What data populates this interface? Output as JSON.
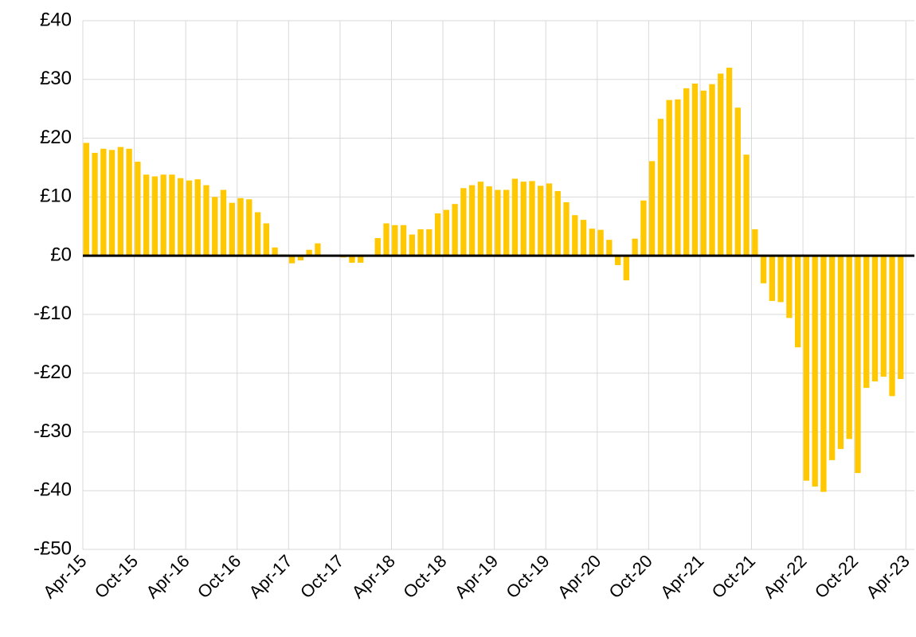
{
  "chart_data": {
    "type": "bar",
    "categories": [
      "Apr-15",
      null,
      null,
      null,
      null,
      null,
      "Oct-15",
      null,
      null,
      null,
      null,
      null,
      "Apr-16",
      null,
      null,
      null,
      null,
      null,
      "Oct-16",
      null,
      null,
      null,
      null,
      null,
      "Apr-17",
      null,
      null,
      null,
      null,
      null,
      "Oct-17",
      null,
      null,
      null,
      null,
      null,
      "Apr-18",
      null,
      null,
      null,
      null,
      null,
      "Oct-18",
      null,
      null,
      null,
      null,
      null,
      "Apr-19",
      null,
      null,
      null,
      null,
      null,
      "Oct-19",
      null,
      null,
      null,
      null,
      null,
      "Apr-20",
      null,
      null,
      null,
      null,
      null,
      "Oct-20",
      null,
      null,
      null,
      null,
      null,
      "Apr-21",
      null,
      null,
      null,
      null,
      null,
      "Oct-21",
      null,
      null,
      null,
      null,
      null,
      "Apr-22",
      null,
      null,
      null,
      null,
      null,
      "Oct-22",
      null,
      null,
      null,
      null,
      null,
      "Apr-23"
    ],
    "values": [
      19.2,
      17.5,
      18.2,
      18.0,
      18.5,
      18.2,
      16.0,
      13.8,
      13.5,
      13.8,
      13.8,
      13.2,
      12.8,
      13.0,
      12.0,
      10.0,
      11.2,
      9.0,
      9.8,
      9.6,
      7.4,
      5.5,
      1.4,
      0.2,
      -1.3,
      -0.8,
      1.0,
      2.1,
      0.1,
      0.1,
      -0.3,
      -1.2,
      -1.2,
      0.1,
      3.0,
      5.5,
      5.2,
      5.2,
      3.6,
      4.5,
      4.5,
      7.2,
      7.8,
      8.8,
      11.5,
      12.0,
      12.6,
      11.8,
      11.2,
      11.2,
      13.1,
      12.6,
      12.7,
      11.9,
      12.3,
      11.0,
      9.1,
      6.9,
      6.1,
      4.6,
      4.4,
      2.7,
      -1.6,
      -4.2,
      2.9,
      9.4,
      16.1,
      23.3,
      26.5,
      26.6,
      28.5,
      29.3,
      28.1,
      29.2,
      31.0,
      32.0,
      25.2,
      17.2,
      4.5,
      -4.7,
      -7.7,
      -7.9,
      -10.6,
      -15.6,
      -38.3,
      -39.3,
      -40.2,
      -34.8,
      -32.9,
      -31.2,
      -37.0,
      -22.5,
      -21.4,
      -20.6,
      -23.9,
      -21.0,
      0.1
    ],
    "color": "#ffc800",
    "ylim": [
      -50,
      40
    ],
    "yticks": [
      {
        "value": -50,
        "label": "-£50"
      },
      {
        "value": -40,
        "label": "-£40"
      },
      {
        "value": -30,
        "label": "-£30"
      },
      {
        "value": -20,
        "label": "-£20"
      },
      {
        "value": -10,
        "label": "-£10"
      },
      {
        "value": 0,
        "label": "£0"
      },
      {
        "value": 10,
        "label": "£10"
      },
      {
        "value": 20,
        "label": "£20"
      },
      {
        "value": 30,
        "label": "£30"
      },
      {
        "value": 40,
        "label": "£40"
      }
    ],
    "grid": true
  }
}
